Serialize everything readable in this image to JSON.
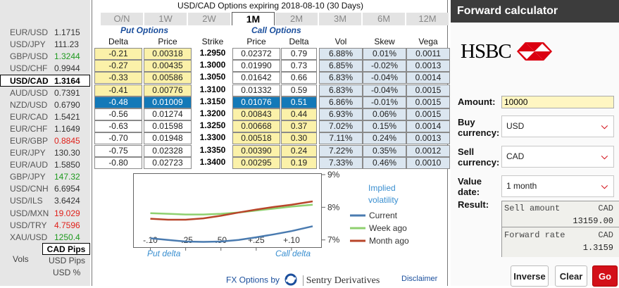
{
  "rates": [
    {
      "name": "EUR/USD",
      "value": "1.1715",
      "color": "#333333"
    },
    {
      "name": "USD/JPY",
      "value": "111.23",
      "color": "#333333"
    },
    {
      "name": "GBP/USD",
      "value": "1.3244",
      "color": "#1f9a1f"
    },
    {
      "name": "USD/CHF",
      "value": "0.9944",
      "color": "#333333"
    },
    {
      "name": "USD/CAD",
      "value": "1.3164",
      "color": "#000000"
    },
    {
      "name": "AUD/USD",
      "value": "0.7391",
      "color": "#333333"
    },
    {
      "name": "NZD/USD",
      "value": "0.6790",
      "color": "#333333"
    },
    {
      "name": "EUR/CAD",
      "value": "1.5421",
      "color": "#333333"
    },
    {
      "name": "EUR/CHF",
      "value": "1.1649",
      "color": "#333333"
    },
    {
      "name": "EUR/GBP",
      "value": "0.8845",
      "color": "#e0201a"
    },
    {
      "name": "EUR/JPY",
      "value": "130.30",
      "color": "#333333"
    },
    {
      "name": "EUR/AUD",
      "value": "1.5850",
      "color": "#333333"
    },
    {
      "name": "GBP/JPY",
      "value": "147.32",
      "color": "#1f9a1f"
    },
    {
      "name": "USD/CNH",
      "value": "6.6954",
      "color": "#333333"
    },
    {
      "name": "USD/ILS",
      "value": "3.6424",
      "color": "#333333"
    },
    {
      "name": "USD/MXN",
      "value": "19.029",
      "color": "#e0201a"
    },
    {
      "name": "USD/TRY",
      "value": "4.7596",
      "color": "#e0201a"
    },
    {
      "name": "XAU/USD",
      "value": "1250.4",
      "color": "#1f9a1f"
    }
  ],
  "selected_rate_index": 4,
  "left_footer": {
    "cad_pips": "CAD Pips",
    "vols": "Vols",
    "usd_pips": "USD Pips",
    "usd_pct": "USD %"
  },
  "options": {
    "title": "USD/CAD Options expiring 2018-08-10 (30 Days)",
    "tabs": [
      "O/N",
      "1W",
      "2W",
      "1M",
      "2M",
      "3M",
      "6M",
      "12M"
    ],
    "active_tab": 3,
    "put_label": "Put Options",
    "call_label": "Call Options",
    "headers": [
      "Delta",
      "Price",
      "Strike",
      "Price",
      "Delta",
      "Vol",
      "Skew",
      "Vega"
    ],
    "rows": [
      {
        "put_delta": "-0.21",
        "put_price": "0.00318",
        "strike": "1.2950",
        "call_price": "0.02372",
        "call_delta": "0.79",
        "vol": "6.88%",
        "skew": "0.01%",
        "vega": "0.0011",
        "itm": "put"
      },
      {
        "put_delta": "-0.27",
        "put_price": "0.00435",
        "strike": "1.3000",
        "call_price": "0.01990",
        "call_delta": "0.73",
        "vol": "6.85%",
        "skew": "-0.02%",
        "vega": "0.0013",
        "itm": "put"
      },
      {
        "put_delta": "-0.33",
        "put_price": "0.00586",
        "strike": "1.3050",
        "call_price": "0.01642",
        "call_delta": "0.66",
        "vol": "6.83%",
        "skew": "-0.04%",
        "vega": "0.0014",
        "itm": "put"
      },
      {
        "put_delta": "-0.41",
        "put_price": "0.00776",
        "strike": "1.3100",
        "call_price": "0.01332",
        "call_delta": "0.59",
        "vol": "6.83%",
        "skew": "-0.04%",
        "vega": "0.0015",
        "itm": "put"
      },
      {
        "put_delta": "-0.48",
        "put_price": "0.01009",
        "strike": "1.3150",
        "call_price": "0.01076",
        "call_delta": "0.51",
        "vol": "6.86%",
        "skew": "-0.01%",
        "vega": "0.0015",
        "itm": "atm"
      },
      {
        "put_delta": "-0.56",
        "put_price": "0.01274",
        "strike": "1.3200",
        "call_price": "0.00843",
        "call_delta": "0.44",
        "vol": "6.93%",
        "skew": "0.06%",
        "vega": "0.0015",
        "itm": "call"
      },
      {
        "put_delta": "-0.63",
        "put_price": "0.01598",
        "strike": "1.3250",
        "call_price": "0.00668",
        "call_delta": "0.37",
        "vol": "7.02%",
        "skew": "0.15%",
        "vega": "0.0014",
        "itm": "call"
      },
      {
        "put_delta": "-0.70",
        "put_price": "0.01948",
        "strike": "1.3300",
        "call_price": "0.00518",
        "call_delta": "0.30",
        "vol": "7.11%",
        "skew": "0.24%",
        "vega": "0.0013",
        "itm": "call"
      },
      {
        "put_delta": "-0.75",
        "put_price": "0.02328",
        "strike": "1.3350",
        "call_price": "0.00390",
        "call_delta": "0.24",
        "vol": "7.22%",
        "skew": "0.35%",
        "vega": "0.0012",
        "itm": "call"
      },
      {
        "put_delta": "-0.80",
        "put_price": "0.02723",
        "strike": "1.3400",
        "call_price": "0.00295",
        "call_delta": "0.19",
        "vol": "7.33%",
        "skew": "0.46%",
        "vega": "0.0010",
        "itm": "call"
      }
    ],
    "footer_text": "FX Options by",
    "sentry": "Sentry Derivatives",
    "disclaimer": "Disclaimer"
  },
  "chart_data": {
    "type": "line",
    "title": "Implied volatility",
    "x_ticks": [
      "-.10",
      "-.25",
      ".50",
      "+.25",
      "+.10"
    ],
    "x_positions": [
      0,
      1,
      2,
      3,
      4
    ],
    "y_ticks": [
      "9%",
      "8%",
      "7%"
    ],
    "ylim": [
      6.8,
      9.0
    ],
    "xlim": [
      -0.25,
      4.7
    ],
    "put_delta_label": "Put delta",
    "call_delta_label": "Call delta",
    "legend_position": "right",
    "series": [
      {
        "name": "Current",
        "color": "#4a7bb0",
        "x": [
          0,
          0.5,
          1,
          1.5,
          2,
          2.5,
          3,
          3.5,
          4,
          4.6
        ],
        "y": [
          7.05,
          7.0,
          6.95,
          6.94,
          6.95,
          7.0,
          7.08,
          7.17,
          7.27,
          7.42
        ]
      },
      {
        "name": "Week ago",
        "color": "#8fd06f",
        "x": [
          0,
          0.5,
          1,
          1.5,
          2,
          2.5,
          3,
          3.5,
          4,
          4.6
        ],
        "y": [
          7.82,
          7.8,
          7.78,
          7.78,
          7.8,
          7.84,
          7.9,
          7.96,
          8.02,
          8.08
        ]
      },
      {
        "name": "Month ago",
        "color": "#b8452a",
        "x": [
          0,
          0.5,
          1,
          1.5,
          2,
          2.5,
          3,
          3.5,
          4,
          4.6
        ],
        "y": [
          7.65,
          7.62,
          7.62,
          7.66,
          7.74,
          7.84,
          7.93,
          8.01,
          8.08,
          8.18
        ]
      }
    ]
  },
  "calculator": {
    "title": "Forward calculator",
    "brand": "HSBC",
    "amount_label": "Amount:",
    "amount_value": "10000",
    "buy_label": "Buy currency:",
    "buy_value": "USD",
    "sell_label": "Sell currency:",
    "sell_value": "CAD",
    "date_label": "Value date:",
    "date_value": "1 month",
    "result_label": "Result:",
    "sell_amount_label": "Sell amount",
    "sell_amount_ccy": "CAD",
    "sell_amount_value": "13159.00",
    "forward_rate_label": "Forward rate",
    "forward_rate_ccy": "CAD",
    "forward_rate_value": "1.3159",
    "buttons": [
      "Inverse",
      "Clear",
      "Go"
    ],
    "accent": "#d31019"
  }
}
